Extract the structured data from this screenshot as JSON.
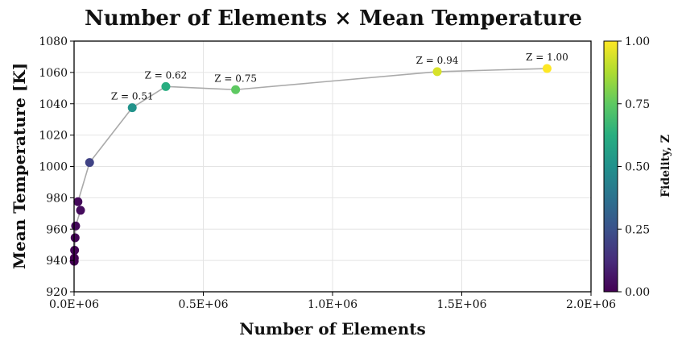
{
  "chart_data": {
    "type": "scatter",
    "title": "Number of Elements × Mean Temperature",
    "xlabel": "Number of Elements",
    "ylabel": "Mean Temperature [K]",
    "xlim": [
      0,
      2000000
    ],
    "ylim": [
      920,
      1080
    ],
    "x_ticks": [
      "0.0E+06",
      "0.5E+06",
      "1.0E+06",
      "1.5E+06",
      "2.0E+06"
    ],
    "y_ticks": [
      "920",
      "940",
      "960",
      "980",
      "1000",
      "1020",
      "1040",
      "1060",
      "1080"
    ],
    "grid": true,
    "connecting_line": true,
    "colormap": "viridis",
    "colorbar": {
      "label": "Fidelity, Z",
      "range": [
        0,
        1
      ],
      "ticks": [
        "0.00",
        "0.25",
        "0.50",
        "0.75",
        "1.00"
      ]
    },
    "points": [
      {
        "x": 500,
        "y": 939.5,
        "z": 0.0,
        "label": ""
      },
      {
        "x": 1000,
        "y": 941.5,
        "z": 0.0,
        "label": ""
      },
      {
        "x": 2000,
        "y": 946.5,
        "z": 0.01,
        "label": ""
      },
      {
        "x": 4000,
        "y": 954.5,
        "z": 0.01,
        "label": ""
      },
      {
        "x": 6000,
        "y": 962.0,
        "z": 0.02,
        "label": ""
      },
      {
        "x": 25000,
        "y": 972.0,
        "z": 0.03,
        "label": ""
      },
      {
        "x": 15000,
        "y": 977.5,
        "z": 0.02,
        "label": ""
      },
      {
        "x": 60000,
        "y": 1002.5,
        "z": 0.2,
        "label": ""
      },
      {
        "x": 225000,
        "y": 1037.5,
        "z": 0.51,
        "label": "Z = 0.51"
      },
      {
        "x": 355000,
        "y": 1051.0,
        "z": 0.62,
        "label": "Z = 0.62"
      },
      {
        "x": 625000,
        "y": 1049.0,
        "z": 0.75,
        "label": "Z = 0.75"
      },
      {
        "x": 1405000,
        "y": 1060.5,
        "z": 0.94,
        "label": "Z = 0.94"
      },
      {
        "x": 1830000,
        "y": 1062.5,
        "z": 1.0,
        "label": "Z = 1.00"
      }
    ]
  }
}
